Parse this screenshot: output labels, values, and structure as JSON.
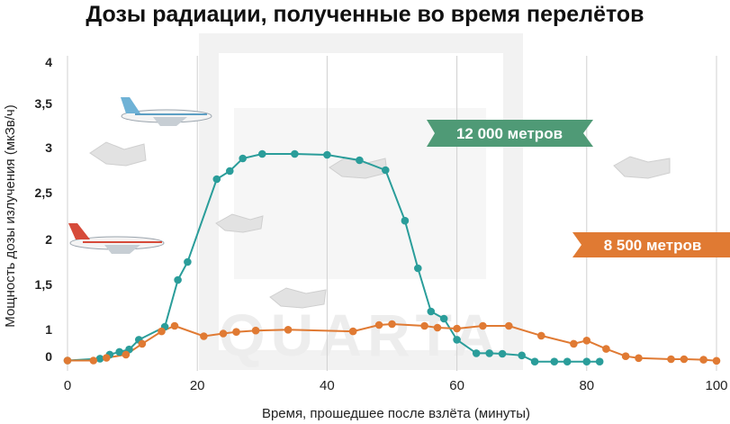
{
  "title": "Дозы радиации, полученные во время перелётов",
  "xlabel": "Время, прошедшее после взлёта (минуты)",
  "ylabel": "Мощность дозы излучения (мкЗв/ч)",
  "watermark": "QUARTA",
  "colors": {
    "teal": "#2a9d9a",
    "orange": "#e07a33",
    "label_green": "#4f9a76",
    "label_orange": "#e07a33",
    "grid": "#d0d0d0",
    "watermark": "#f1f1f1"
  },
  "chart_data": {
    "type": "line",
    "xlim": [
      0,
      100
    ],
    "ylim": [
      0,
      4
    ],
    "x_ticks": [
      0,
      20,
      40,
      60,
      80,
      100
    ],
    "y_ticks": [
      {
        "v": 0,
        "label": "0"
      },
      {
        "v": 1,
        "label": "1"
      },
      {
        "v": 1.5,
        "label": "1,5"
      },
      {
        "v": 2,
        "label": "2"
      },
      {
        "v": 2.5,
        "label": "2,5"
      },
      {
        "v": 3,
        "label": "3"
      },
      {
        "v": 3.5,
        "label": "3,5"
      },
      {
        "v": 4,
        "label": "4"
      }
    ],
    "series": [
      {
        "name": "12 000 метров",
        "color": "#2a9d9a",
        "points": [
          [
            0,
            -0.15
          ],
          [
            5,
            -0.08
          ],
          [
            6.5,
            0.07
          ],
          [
            8,
            0.17
          ],
          [
            9.5,
            0.26
          ],
          [
            11,
            0.62
          ],
          [
            15,
            1.03
          ],
          [
            17,
            1.55
          ],
          [
            18.5,
            1.75
          ],
          [
            23,
            2.65
          ],
          [
            25,
            2.74
          ],
          [
            27,
            2.88
          ],
          [
            30,
            2.93
          ],
          [
            35,
            2.93
          ],
          [
            40,
            2.92
          ],
          [
            45,
            2.86
          ],
          [
            49,
            2.75
          ],
          [
            52,
            2.2
          ],
          [
            54,
            1.68
          ],
          [
            56,
            1.2
          ],
          [
            58,
            1.12
          ],
          [
            60,
            0.62
          ],
          [
            63,
            0.12
          ],
          [
            65,
            0.12
          ],
          [
            67,
            0.1
          ],
          [
            70,
            0.04
          ],
          [
            72,
            -0.19
          ],
          [
            75,
            -0.19
          ],
          [
            77,
            -0.19
          ],
          [
            80,
            -0.19
          ],
          [
            82,
            -0.19
          ]
        ]
      },
      {
        "name": "8 500 метров",
        "color": "#e07a33",
        "points": [
          [
            0,
            -0.15
          ],
          [
            4,
            -0.15
          ],
          [
            6,
            -0.05
          ],
          [
            9,
            0.07
          ],
          [
            11.5,
            0.47
          ],
          [
            14.5,
            0.93
          ],
          [
            16.5,
            1.04
          ],
          [
            21,
            0.75
          ],
          [
            24,
            0.85
          ],
          [
            26,
            0.91
          ],
          [
            29,
            0.96
          ],
          [
            34,
            0.99
          ],
          [
            44,
            0.93
          ],
          [
            48,
            1.05
          ],
          [
            50,
            1.06
          ],
          [
            55,
            1.04
          ],
          [
            57,
            1.02
          ],
          [
            60,
            1.01
          ],
          [
            64,
            1.04
          ],
          [
            68,
            1.04
          ],
          [
            73,
            0.77
          ],
          [
            78,
            0.47
          ],
          [
            80,
            0.59
          ],
          [
            83,
            0.28
          ],
          [
            86,
            0.01
          ],
          [
            88,
            -0.06
          ],
          [
            93,
            -0.1
          ],
          [
            95,
            -0.1
          ],
          [
            98,
            -0.12
          ],
          [
            100,
            -0.16
          ]
        ]
      }
    ]
  },
  "labels": {
    "teal": "12 000 метров",
    "orange": "8 500 метров"
  }
}
